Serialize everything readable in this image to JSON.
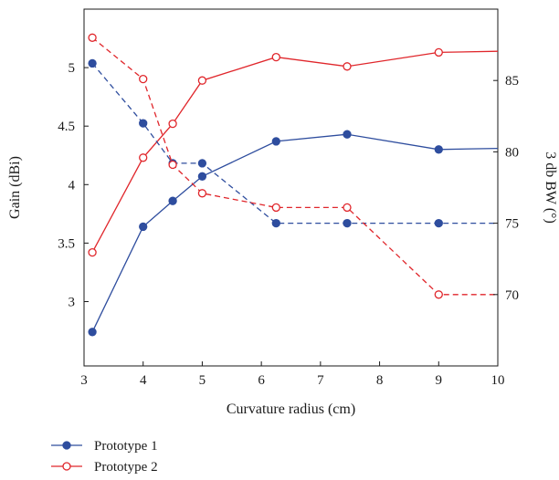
{
  "chart_data": {
    "type": "line",
    "xlabel": "Curvature radius (cm)",
    "ylabel": "Gain (dBi)",
    "y2label": "3 db BW (°)",
    "xlim": [
      3,
      10
    ],
    "ylim": [
      2.45,
      5.5
    ],
    "y2lim": [
      65,
      90
    ],
    "x_ticks": [
      3,
      4,
      5,
      6,
      7,
      8,
      9,
      10
    ],
    "y_ticks": [
      3,
      3.5,
      4,
      4.5,
      5
    ],
    "y2_ticks": [
      70,
      75,
      80,
      85
    ],
    "grid": false,
    "legend_position": "bottom-left",
    "colors": {
      "prototype1": "#2e4d9e",
      "prototype2": "#e0262b"
    },
    "series": [
      {
        "name": "Prototype 1",
        "axis": "gain",
        "style": "solid",
        "marker": "filled-circle",
        "x": [
          3.14,
          4,
          4.5,
          5,
          6.25,
          7.45,
          9,
          10
        ],
        "y": [
          2.74,
          3.64,
          3.86,
          4.07,
          4.37,
          4.43,
          4.3,
          4.31
        ],
        "marker_points": 7
      },
      {
        "name": "Prototype 2",
        "axis": "gain",
        "style": "solid",
        "marker": "open-circle",
        "x": [
          3.14,
          4,
          4.5,
          5,
          6.25,
          7.45,
          9,
          10
        ],
        "y": [
          3.42,
          4.23,
          4.52,
          4.89,
          5.09,
          5.01,
          5.13,
          5.14
        ],
        "marker_points": 7
      },
      {
        "name": "Prototype 1",
        "axis": "bw",
        "style": "dashed",
        "marker": "filled-circle",
        "x": [
          3.14,
          4,
          4.5,
          5,
          6.25,
          7.45,
          9,
          10
        ],
        "y": [
          86.2,
          82.0,
          79.2,
          79.2,
          75.0,
          75.0,
          75.0,
          75.0
        ],
        "marker_points": 7
      },
      {
        "name": "Prototype 2",
        "axis": "bw",
        "style": "dashed",
        "marker": "open-circle",
        "x": [
          3.14,
          4,
          4.5,
          5,
          6.25,
          7.45,
          9,
          10
        ],
        "y": [
          88.0,
          85.1,
          79.1,
          77.1,
          76.1,
          76.1,
          70.0,
          70.0
        ],
        "marker_points": 7
      }
    ],
    "legend": [
      {
        "key": "prototype1",
        "label": "Prototype 1",
        "marker": "filled-circle"
      },
      {
        "key": "prototype2",
        "label": "Prototype 2",
        "marker": "open-circle"
      }
    ]
  }
}
